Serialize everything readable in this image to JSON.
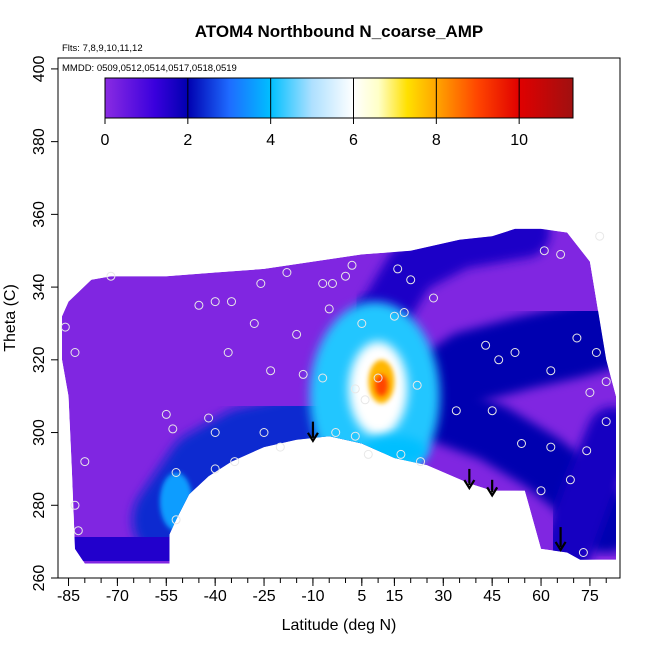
{
  "chart_data": {
    "type": "heatmap",
    "title": "ATOM4 Northbound N_coarse_AMP",
    "notes": [
      "Flts: 7,8,9,10,11,12",
      "MMDD: 0509,0512,0514,0517,0518,0519"
    ],
    "xlabel": "Latitude (deg N)",
    "ylabel": "Theta (C)",
    "xlim": [
      -87,
      83
    ],
    "ylim": [
      260,
      403
    ],
    "x_ticks": [
      -85,
      -70,
      -55,
      -40,
      -25,
      -10,
      5,
      15,
      30,
      45,
      60,
      75
    ],
    "x_minor_step": 5,
    "y_ticks": [
      260,
      280,
      300,
      320,
      340,
      360,
      380,
      400
    ],
    "colorbar": {
      "range": [
        0,
        11.3
      ],
      "ticks": [
        0,
        2,
        4,
        6,
        8,
        10
      ],
      "stops": [
        {
          "v": 0,
          "color": "#8a2be2"
        },
        {
          "v": 1.2,
          "color": "#3a00dd"
        },
        {
          "v": 2,
          "color": "#0000b0"
        },
        {
          "v": 3,
          "color": "#1e6bff"
        },
        {
          "v": 4,
          "color": "#00bfff"
        },
        {
          "v": 5,
          "color": "#aee0ff"
        },
        {
          "v": 6,
          "color": "#ffffff"
        },
        {
          "v": 6.6,
          "color": "#ffffc8"
        },
        {
          "v": 7.3,
          "color": "#ffe000"
        },
        {
          "v": 8,
          "color": "#ffa500"
        },
        {
          "v": 9,
          "color": "#ff4500"
        },
        {
          "v": 10,
          "color": "#e00000"
        },
        {
          "v": 11.3,
          "color": "#a01010"
        }
      ]
    },
    "field_boundary": [
      [
        -87,
        332
      ],
      [
        -85,
        336
      ],
      [
        -78,
        342
      ],
      [
        -72,
        343
      ],
      [
        -55,
        343
      ],
      [
        -40,
        344
      ],
      [
        -25,
        345
      ],
      [
        -10,
        347
      ],
      [
        5,
        349
      ],
      [
        20,
        350
      ],
      [
        35,
        353
      ],
      [
        45,
        354
      ],
      [
        52,
        356
      ],
      [
        60,
        356
      ],
      [
        68,
        355
      ],
      [
        75,
        347
      ],
      [
        80,
        320
      ],
      [
        83,
        310
      ],
      [
        83,
        265
      ],
      [
        78,
        265
      ],
      [
        72,
        265
      ],
      [
        68,
        267
      ],
      [
        60,
        268
      ],
      [
        55,
        284
      ],
      [
        45,
        284
      ],
      [
        38,
        286
      ],
      [
        25,
        291
      ],
      [
        15,
        293
      ],
      [
        5,
        297
      ],
      [
        -5,
        299
      ],
      [
        -15,
        298
      ],
      [
        -25,
        296
      ],
      [
        -35,
        292
      ],
      [
        -42,
        288
      ],
      [
        -48,
        283
      ],
      [
        -52,
        276
      ],
      [
        -54,
        272
      ],
      [
        -54,
        264
      ],
      [
        -80,
        264
      ],
      [
        -83,
        268
      ],
      [
        -84,
        290
      ],
      [
        -85,
        310
      ],
      [
        -87,
        320
      ]
    ],
    "features": [
      {
        "type": "band",
        "value": 2.4,
        "width": 24,
        "path": [
          [
            -52,
            276
          ],
          [
            -42,
            289
          ],
          [
            -30,
            295
          ],
          [
            -15,
            298
          ],
          [
            -5,
            300
          ],
          [
            5,
            298
          ]
        ]
      },
      {
        "type": "band",
        "value": 2.3,
        "width": 16,
        "path": [
          [
            5,
            300
          ],
          [
            8,
            320
          ],
          [
            10,
            330
          ]
        ]
      },
      {
        "type": "band",
        "value": 2.0,
        "width": 20,
        "path": [
          [
            25,
            310
          ],
          [
            38,
            318
          ],
          [
            55,
            322
          ],
          [
            70,
            325
          ],
          [
            82,
            328
          ]
        ]
      },
      {
        "type": "band",
        "value": 2.0,
        "width": 16,
        "path": [
          [
            30,
            305
          ],
          [
            45,
            300
          ],
          [
            60,
            292
          ],
          [
            70,
            285
          ],
          [
            80,
            275
          ]
        ]
      },
      {
        "type": "band",
        "value": 1.6,
        "width": 14,
        "path": [
          [
            10,
            330
          ],
          [
            20,
            345
          ],
          [
            35,
            352
          ],
          [
            55,
            355
          ]
        ]
      },
      {
        "type": "band",
        "value": 1.5,
        "width": 26,
        "path": [
          [
            -80,
            266
          ],
          [
            -65,
            268
          ],
          [
            -55,
            270
          ]
        ]
      },
      {
        "type": "band",
        "value": 1.7,
        "width": 14,
        "path": [
          [
            68,
            268
          ],
          [
            75,
            285
          ],
          [
            82,
            300
          ]
        ]
      },
      {
        "type": "blob",
        "value": 4.2,
        "rx": 20,
        "ry": 26,
        "at": [
          9,
          310
        ]
      },
      {
        "type": "blob",
        "value": 6.0,
        "rx": 9,
        "ry": 13,
        "at": [
          10,
          312
        ]
      },
      {
        "type": "blob",
        "value": 7.8,
        "rx": 4,
        "ry": 6,
        "at": [
          11,
          314
        ]
      },
      {
        "type": "blob",
        "value": 9.0,
        "rx": 2,
        "ry": 3,
        "at": [
          11,
          313
        ]
      },
      {
        "type": "blob",
        "value": 4.0,
        "rx": 10,
        "ry": 4,
        "at": [
          15,
          295
        ]
      },
      {
        "type": "blob",
        "value": 3.6,
        "rx": 5,
        "ry": 8,
        "at": [
          -52,
          281
        ]
      }
    ],
    "samples": [
      [
        -86,
        329
      ],
      [
        -83,
        322
      ],
      [
        -83,
        280
      ],
      [
        -82,
        273
      ],
      [
        -80,
        292
      ],
      [
        -72,
        343
      ],
      [
        -55,
        305
      ],
      [
        -53,
        301
      ],
      [
        -52,
        276
      ],
      [
        -52,
        289
      ],
      [
        -45,
        335
      ],
      [
        -42,
        304
      ],
      [
        -40,
        300
      ],
      [
        -40,
        290
      ],
      [
        -40,
        336
      ],
      [
        -35,
        336
      ],
      [
        -36,
        322
      ],
      [
        -34,
        292
      ],
      [
        -28,
        330
      ],
      [
        -26,
        341
      ],
      [
        -25,
        300
      ],
      [
        -23,
        317
      ],
      [
        -20,
        296
      ],
      [
        -18,
        344
      ],
      [
        -15,
        327
      ],
      [
        -13,
        316
      ],
      [
        -7,
        315
      ],
      [
        -7,
        341
      ],
      [
        -5,
        334
      ],
      [
        -4,
        341
      ],
      [
        -3,
        300
      ],
      [
        0,
        343
      ],
      [
        2,
        346
      ],
      [
        3,
        312
      ],
      [
        3,
        299
      ],
      [
        5,
        330
      ],
      [
        6,
        309
      ],
      [
        7,
        294
      ],
      [
        10,
        315
      ],
      [
        15,
        332
      ],
      [
        16,
        345
      ],
      [
        17,
        294
      ],
      [
        18,
        333
      ],
      [
        20,
        342
      ],
      [
        22,
        313
      ],
      [
        23,
        292
      ],
      [
        27,
        337
      ],
      [
        34,
        306
      ],
      [
        43,
        324
      ],
      [
        45,
        306
      ],
      [
        47,
        320
      ],
      [
        52,
        322
      ],
      [
        54,
        297
      ],
      [
        60,
        284
      ],
      [
        61,
        350
      ],
      [
        63,
        317
      ],
      [
        63,
        296
      ],
      [
        66,
        349
      ],
      [
        69,
        287
      ],
      [
        71,
        326
      ],
      [
        73,
        267
      ],
      [
        75,
        311
      ],
      [
        77,
        322
      ],
      [
        80,
        314
      ],
      [
        80,
        303
      ],
      [
        74,
        295
      ],
      [
        78,
        354
      ]
    ],
    "arrows": [
      {
        "x": -10,
        "y_start": 303,
        "y_end": 298
      },
      {
        "x": 38,
        "y_start": 290,
        "y_end": 285
      },
      {
        "x": 45,
        "y_start": 287,
        "y_end": 283
      },
      {
        "x": 66,
        "y_start": 274,
        "y_end": 268
      }
    ]
  }
}
